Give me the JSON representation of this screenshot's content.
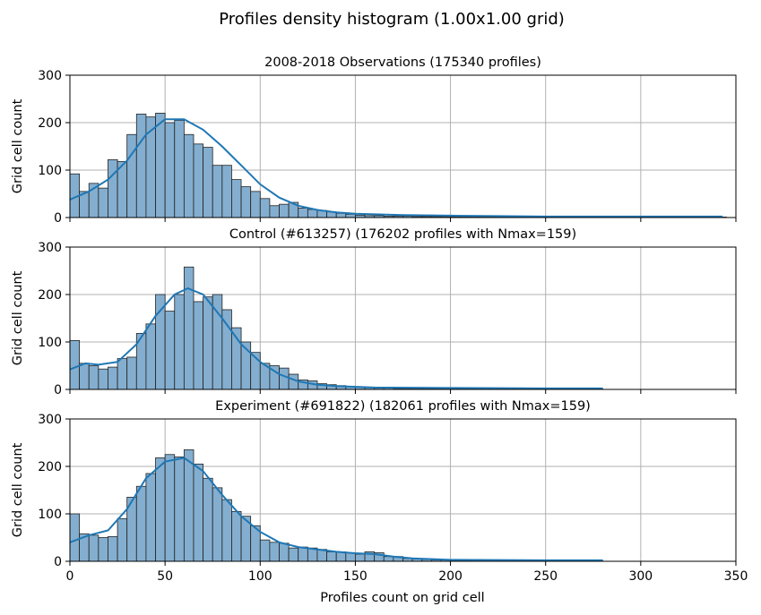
{
  "suptitle": "Profiles density histogram (1.00x1.00 grid)",
  "xlabel": "Profiles count on grid cell",
  "chart_data": [
    {
      "type": "bar",
      "title": "2008-2018 Observations (175340 profiles)",
      "ylabel": "Grid cell count",
      "xlim": [
        0,
        350
      ],
      "ylim": [
        0,
        300
      ],
      "xticks": [
        0,
        50,
        100,
        150,
        200,
        250,
        300,
        350
      ],
      "yticks": [
        0,
        100,
        200,
        300
      ],
      "grid": true,
      "bin_width": 5,
      "bin_start": 0,
      "values": [
        92,
        55,
        72,
        62,
        122,
        118,
        175,
        218,
        212,
        220,
        200,
        205,
        175,
        155,
        148,
        110,
        110,
        80,
        65,
        55,
        40,
        25,
        28,
        32,
        20,
        17,
        15,
        12,
        9,
        7,
        5,
        4,
        4,
        3,
        3,
        3,
        2,
        2,
        2,
        2,
        2,
        2,
        2,
        2,
        2,
        2,
        2,
        2,
        1,
        1,
        1,
        1,
        1,
        1,
        1,
        1,
        1,
        1,
        1,
        1,
        1,
        1,
        1,
        1,
        1,
        1,
        1,
        1,
        1
      ],
      "kde": [
        [
          0,
          38
        ],
        [
          10,
          55
        ],
        [
          20,
          80
        ],
        [
          30,
          120
        ],
        [
          40,
          175
        ],
        [
          50,
          207
        ],
        [
          60,
          207
        ],
        [
          70,
          185
        ],
        [
          80,
          150
        ],
        [
          90,
          110
        ],
        [
          100,
          70
        ],
        [
          110,
          42
        ],
        [
          120,
          25
        ],
        [
          130,
          16
        ],
        [
          140,
          11
        ],
        [
          150,
          8
        ],
        [
          175,
          5
        ],
        [
          200,
          4
        ],
        [
          225,
          3
        ],
        [
          250,
          2
        ],
        [
          300,
          2
        ],
        [
          343,
          2
        ]
      ]
    },
    {
      "type": "bar",
      "title": "Control (#613257) (176202 profiles with Nmax=159)",
      "ylabel": "Grid cell count",
      "xlim": [
        0,
        350
      ],
      "ylim": [
        0,
        300
      ],
      "xticks": [
        0,
        50,
        100,
        150,
        200,
        250,
        300,
        350
      ],
      "yticks": [
        0,
        100,
        200,
        300
      ],
      "grid": true,
      "bin_width": 5,
      "bin_start": 0,
      "values": [
        103,
        55,
        50,
        43,
        47,
        65,
        68,
        118,
        138,
        200,
        165,
        200,
        258,
        185,
        195,
        200,
        168,
        130,
        100,
        78,
        55,
        50,
        45,
        32,
        20,
        18,
        12,
        10,
        8,
        6,
        5,
        4,
        3,
        3,
        2,
        2,
        2,
        2,
        2,
        2,
        2,
        2,
        2,
        2,
        2,
        2,
        2,
        2,
        2,
        2,
        2,
        2,
        2,
        2,
        2,
        2
      ],
      "kde": [
        [
          0,
          42
        ],
        [
          8,
          55
        ],
        [
          15,
          52
        ],
        [
          25,
          58
        ],
        [
          35,
          95
        ],
        [
          45,
          155
        ],
        [
          55,
          200
        ],
        [
          62,
          213
        ],
        [
          70,
          200
        ],
        [
          80,
          150
        ],
        [
          90,
          95
        ],
        [
          100,
          58
        ],
        [
          110,
          32
        ],
        [
          120,
          17
        ],
        [
          130,
          10
        ],
        [
          140,
          7
        ],
        [
          160,
          4
        ],
        [
          200,
          3
        ],
        [
          250,
          2
        ],
        [
          280,
          2
        ]
      ]
    },
    {
      "type": "bar",
      "title": "Experiment (#691822) (182061 profiles with Nmax=159)",
      "ylabel": "Grid cell count",
      "xlim": [
        0,
        350
      ],
      "ylim": [
        0,
        300
      ],
      "xticks": [
        0,
        50,
        100,
        150,
        200,
        250,
        300,
        350
      ],
      "yticks": [
        0,
        100,
        200,
        300
      ],
      "grid": true,
      "bin_width": 5,
      "bin_start": 0,
      "values": [
        100,
        58,
        55,
        50,
        52,
        90,
        135,
        158,
        185,
        218,
        225,
        220,
        235,
        205,
        175,
        155,
        130,
        105,
        95,
        75,
        45,
        40,
        38,
        28,
        30,
        28,
        25,
        20,
        20,
        18,
        15,
        20,
        18,
        10,
        10,
        6,
        5,
        4,
        3,
        3,
        2,
        2,
        2,
        2,
        2,
        2,
        2,
        2,
        2,
        2,
        2,
        2,
        2,
        2,
        2,
        2
      ],
      "kde": [
        [
          0,
          40
        ],
        [
          10,
          55
        ],
        [
          20,
          65
        ],
        [
          30,
          110
        ],
        [
          40,
          175
        ],
        [
          50,
          210
        ],
        [
          60,
          218
        ],
        [
          70,
          190
        ],
        [
          80,
          140
        ],
        [
          90,
          95
        ],
        [
          100,
          62
        ],
        [
          110,
          40
        ],
        [
          120,
          30
        ],
        [
          130,
          25
        ],
        [
          140,
          20
        ],
        [
          150,
          17
        ],
        [
          160,
          15
        ],
        [
          170,
          10
        ],
        [
          180,
          6
        ],
        [
          200,
          3
        ],
        [
          250,
          2
        ],
        [
          280,
          2
        ]
      ]
    }
  ]
}
